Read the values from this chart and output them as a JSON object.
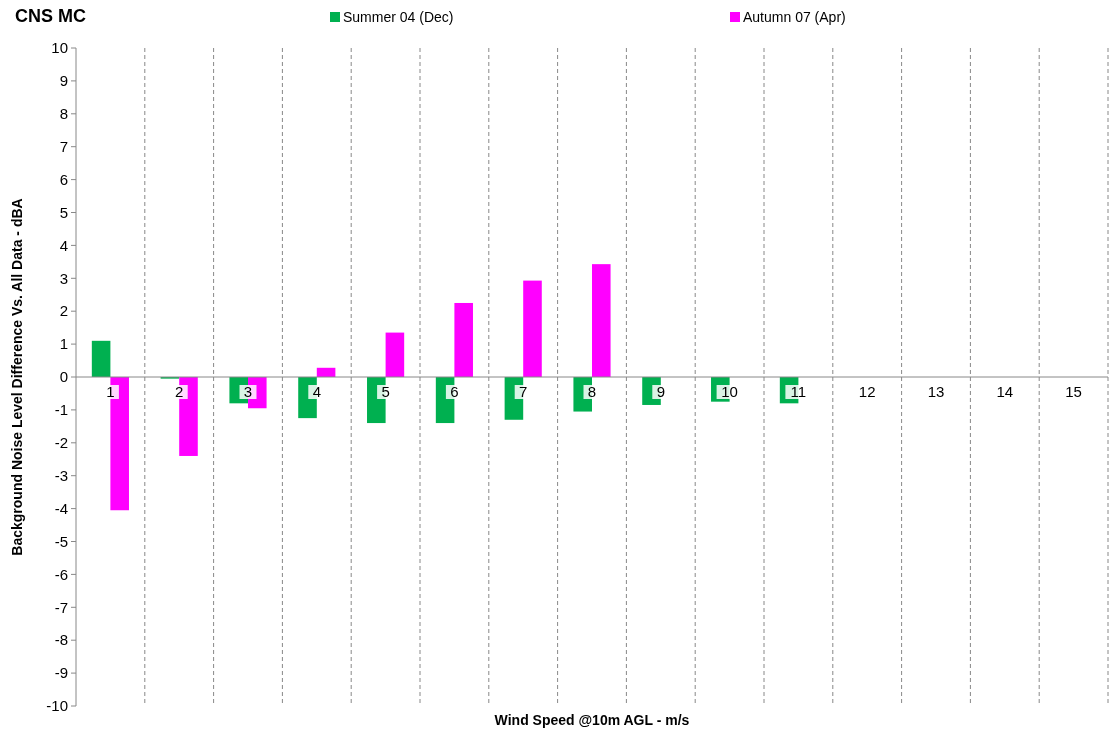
{
  "chart_data": {
    "type": "bar",
    "title": "CNS MC",
    "xlabel": "Wind Speed @10m AGL - m/s",
    "ylabel": "Background  Noise Level Difference Vs. All Data - dBA",
    "categories": [
      "1",
      "2",
      "3",
      "4",
      "5",
      "6",
      "7",
      "8",
      "9",
      "10",
      "11",
      "12",
      "13",
      "14",
      "15"
    ],
    "series": [
      {
        "name": "Summer 04 (Dec)",
        "color": "#00b050",
        "values": [
          1.1,
          -0.05,
          -0.8,
          -1.25,
          -1.4,
          -1.4,
          -1.3,
          -1.05,
          -0.85,
          -0.75,
          -0.8,
          null,
          null,
          null,
          null
        ]
      },
      {
        "name": "Autumn 07 (Apr)",
        "color": "#ff00ff",
        "values": [
          -4.05,
          -2.4,
          -0.95,
          0.28,
          1.35,
          2.25,
          2.93,
          3.43,
          null,
          null,
          null,
          null,
          null,
          null,
          null
        ]
      }
    ],
    "ylim": [
      -10,
      10
    ],
    "yticks": [
      -10,
      -9,
      -8,
      -7,
      -6,
      -5,
      -4,
      -3,
      -2,
      -1,
      0,
      1,
      2,
      3,
      4,
      5,
      6,
      7,
      8,
      9,
      10
    ],
    "grid": "x",
    "legend": "top"
  }
}
